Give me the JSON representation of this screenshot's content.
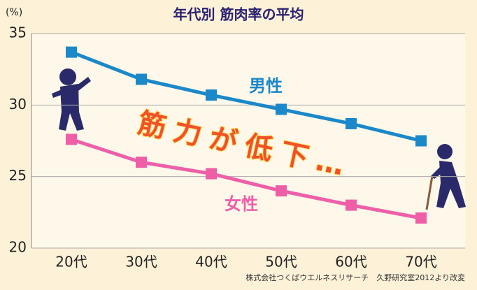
{
  "chart_data": {
    "type": "line",
    "title": "年代別 筋肉率の平均",
    "y_label": "(%)",
    "categories": [
      "20代",
      "30代",
      "40代",
      "50代",
      "60代",
      "70代"
    ],
    "series": [
      {
        "name": "男性",
        "color": "#1b88c9",
        "values": [
          33.7,
          31.8,
          30.7,
          29.7,
          28.7,
          27.5
        ]
      },
      {
        "name": "女性",
        "color": "#ee5fa8",
        "values": [
          27.6,
          26.0,
          25.2,
          24.0,
          23.0,
          22.1
        ]
      }
    ],
    "ylim": [
      20,
      35
    ],
    "yticks": [
      20,
      25,
      30,
      35
    ],
    "grid": true,
    "annotation": "筋力が低下…",
    "source": "株式会社つくばウエルネスリサーチ　久野研究室2012より改変"
  }
}
